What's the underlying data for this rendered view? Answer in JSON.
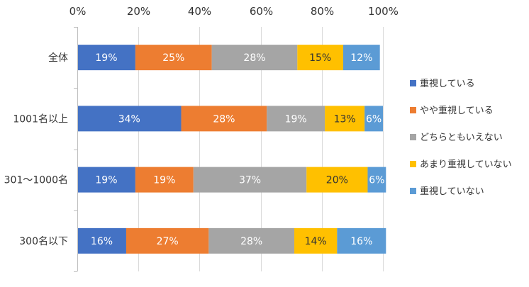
{
  "chart_data": {
    "type": "bar",
    "orientation": "horizontal",
    "stacked": true,
    "percent_stacked": true,
    "title": "",
    "xlabel": "",
    "ylabel": "",
    "xlim": [
      0,
      100
    ],
    "x_ticks": [
      "0%",
      "20%",
      "40%",
      "60%",
      "80%",
      "100%"
    ],
    "x_axis_position": "top",
    "grid": true,
    "legend_position": "right",
    "categories": [
      "全体",
      "1001名以上",
      "301～1000名",
      "300名以下"
    ],
    "series": [
      {
        "name": "重視している",
        "color": "#4472C4",
        "values": [
          19,
          34,
          19,
          16
        ],
        "labels": [
          "19%",
          "34%",
          "19%",
          "16%"
        ],
        "label_color": "#FFFFFF"
      },
      {
        "name": "やや重視している",
        "color": "#ED7D31",
        "values": [
          25,
          28,
          19,
          27
        ],
        "labels": [
          "25%",
          "28%",
          "19%",
          "27%"
        ],
        "label_color": "#FFFFFF"
      },
      {
        "name": "どちらともいえない",
        "color": "#A5A5A5",
        "values": [
          28,
          19,
          37,
          28
        ],
        "labels": [
          "28%",
          "19%",
          "37%",
          "28%"
        ],
        "label_color": "#FFFFFF"
      },
      {
        "name": "あまり重視していない",
        "color": "#FFC000",
        "values": [
          15,
          13,
          20,
          14
        ],
        "labels": [
          "15%",
          "13%",
          "20%",
          "14%"
        ],
        "label_color": "#333333"
      },
      {
        "name": "重視していない",
        "color": "#5B9BD5",
        "values": [
          12,
          6,
          6,
          16
        ],
        "labels": [
          "12%",
          "6%",
          "6%",
          "16%"
        ],
        "label_color": "#FFFFFF"
      }
    ]
  }
}
